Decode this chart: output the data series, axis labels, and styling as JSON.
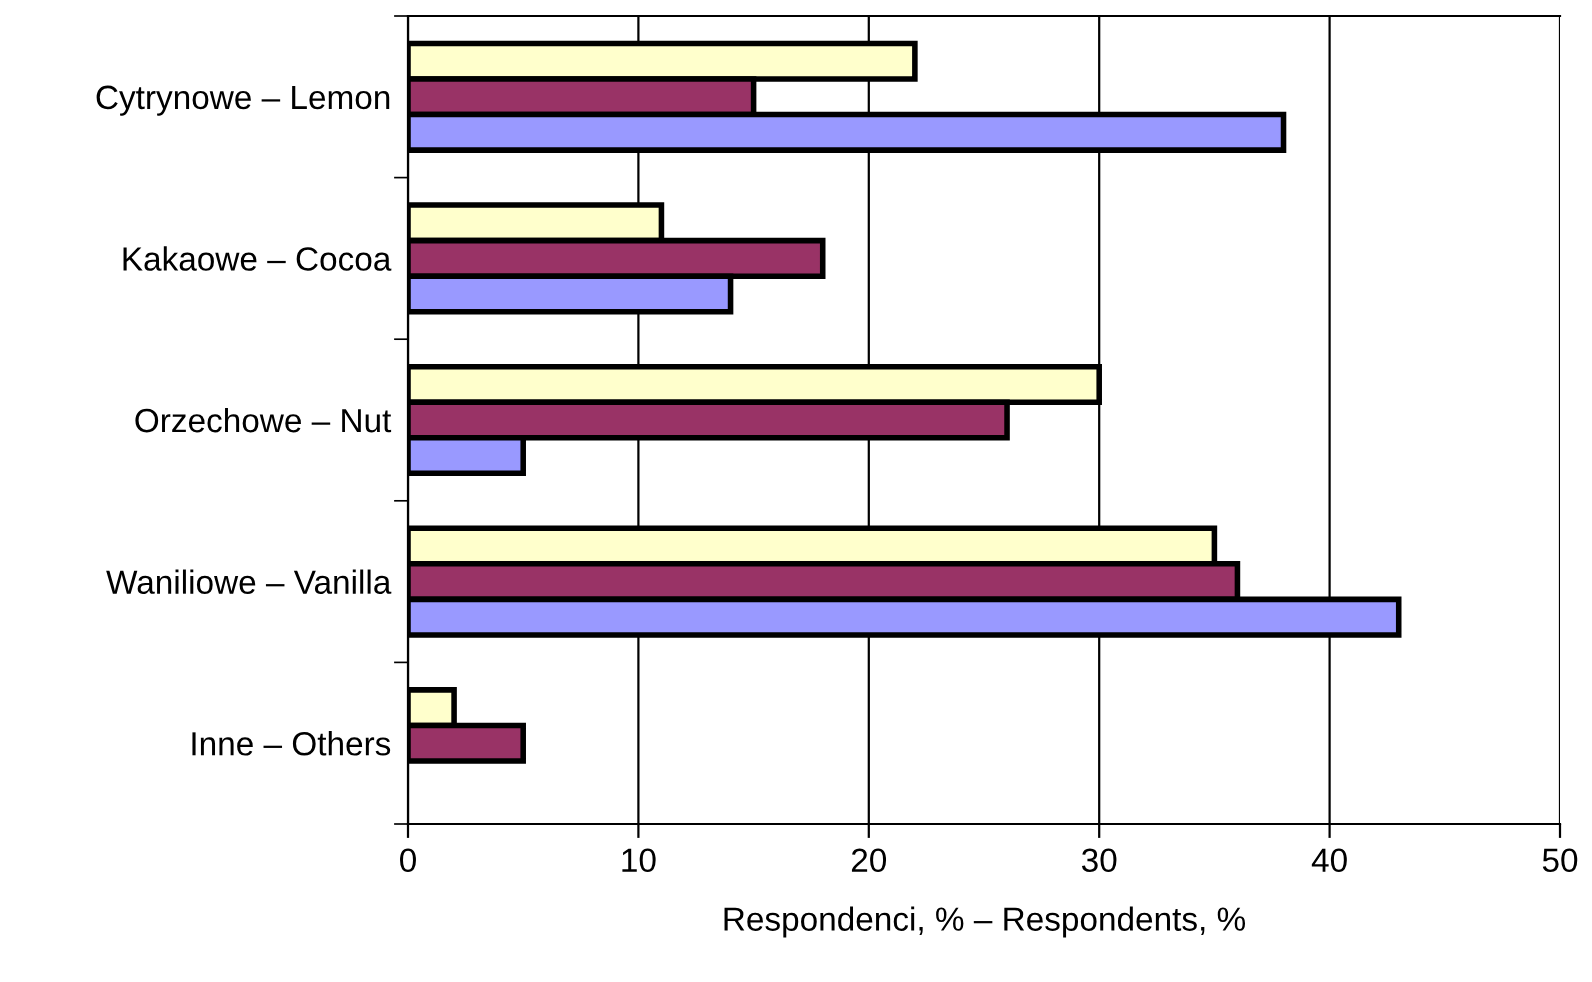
{
  "chart_data": {
    "type": "bar",
    "orientation": "horizontal",
    "categories": [
      "Cytrynowe – Lemon",
      "Kakaowe – Cocoa",
      "Orzechowe – Nut",
      "Waniliowe – Vanilla",
      "Inne – Others"
    ],
    "series": [
      {
        "color": "#ffffcc",
        "values": [
          22,
          11,
          30,
          35,
          2
        ]
      },
      {
        "color": "#993366",
        "values": [
          15,
          18,
          26,
          36,
          5
        ]
      },
      {
        "color": "#9999ff",
        "values": [
          38,
          14,
          5,
          43,
          null
        ]
      }
    ],
    "xlabel": "Respondenci, % – Respondents, %",
    "xlim": [
      0,
      50
    ],
    "xticks": [
      0,
      10,
      20,
      30,
      40,
      50
    ],
    "grid": "x",
    "legend": false
  }
}
